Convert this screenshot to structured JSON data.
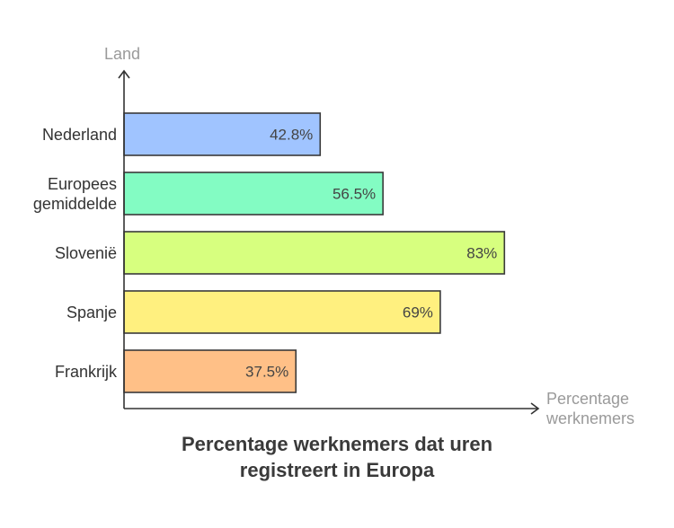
{
  "chart_data": {
    "type": "bar",
    "orientation": "horizontal",
    "title": "Percentage werknemers dat uren\nregistreert in Europa",
    "xlabel": "Percentage\nwerknemers",
    "ylabel": "Land",
    "xlim": [
      0,
      100
    ],
    "categories": [
      "Nederland",
      "Europees\ngemiddelde",
      "Slovenië",
      "Spanje",
      "Frankrijk"
    ],
    "values": [
      42.8,
      56.5,
      83,
      69,
      37.5
    ],
    "value_labels": [
      "42.8%",
      "56.5%",
      "83%",
      "69%",
      "37.5%"
    ],
    "colors": [
      "#a0c4ff",
      "#83fcc3",
      "#d7ff7f",
      "#fff07f",
      "#ffc087"
    ],
    "grid": false,
    "legend": "none"
  }
}
